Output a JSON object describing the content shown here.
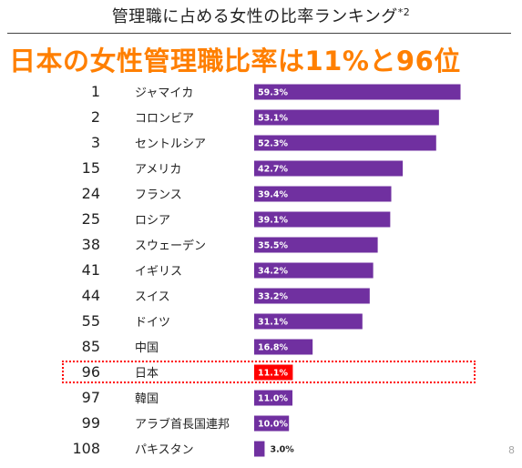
{
  "title": {
    "text": "管理職に占める女性の比率ランキング",
    "footnote_mark": "*2"
  },
  "headline": "日本の女性管理職比率は11%と96位",
  "page_number": "8",
  "colors": {
    "bar": "#7030a0",
    "highlight_bar": "#ff0000",
    "headline": "#ff7f00",
    "highlight_border": "#ff0000"
  },
  "chart_data": {
    "type": "bar",
    "orientation": "horizontal",
    "value_unit": "%",
    "rows": [
      {
        "rank": "1",
        "country": "ジャマイカ",
        "value": 59.3,
        "label": "59.3%"
      },
      {
        "rank": "2",
        "country": "コロンビア",
        "value": 53.1,
        "label": "53.1%"
      },
      {
        "rank": "3",
        "country": "セントルシア",
        "value": 52.3,
        "label": "52.3%"
      },
      {
        "rank": "15",
        "country": "アメリカ",
        "value": 42.7,
        "label": "42.7%"
      },
      {
        "rank": "24",
        "country": "フランス",
        "value": 39.4,
        "label": "39.4%"
      },
      {
        "rank": "25",
        "country": "ロシア",
        "value": 39.1,
        "label": "39.1%"
      },
      {
        "rank": "38",
        "country": "スウェーデン",
        "value": 35.5,
        "label": "35.5%"
      },
      {
        "rank": "41",
        "country": "イギリス",
        "value": 34.2,
        "label": "34.2%"
      },
      {
        "rank": "44",
        "country": "スイス",
        "value": 33.2,
        "label": "33.2%"
      },
      {
        "rank": "55",
        "country": "ドイツ",
        "value": 31.1,
        "label": "31.1%"
      },
      {
        "rank": "85",
        "country": "中国",
        "value": 16.8,
        "label": "16.8%"
      },
      {
        "rank": "96",
        "country": "日本",
        "value": 11.1,
        "label": "11.1%",
        "highlight": true
      },
      {
        "rank": "97",
        "country": "韓国",
        "value": 11.0,
        "label": "11.0%"
      },
      {
        "rank": "99",
        "country": "アラブ首長国連邦",
        "value": 10.0,
        "label": "10.0%"
      },
      {
        "rank": "108",
        "country": "パキスタン",
        "value": 3.0,
        "label": "3.0%"
      }
    ]
  }
}
